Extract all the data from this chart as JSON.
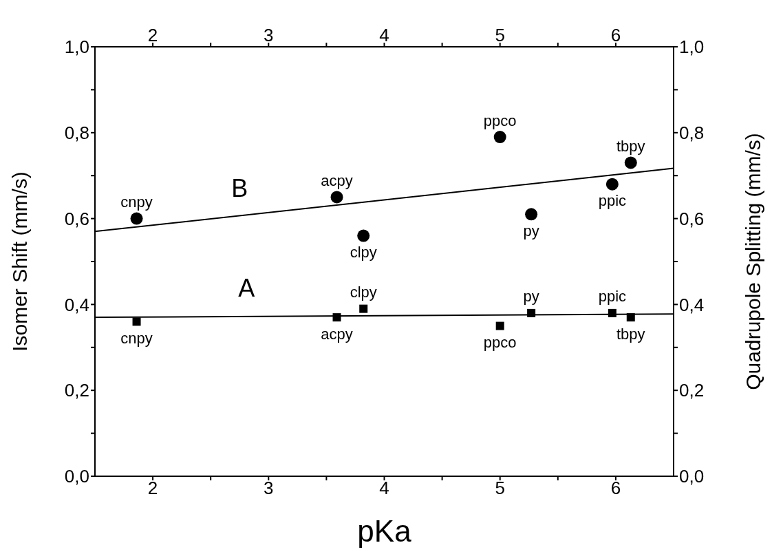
{
  "chart_data": {
    "type": "scatter",
    "xlabel": "pKa",
    "ylabel": "Isomer Shift (mm/s)",
    "y2label": "Quadrupole Splitting (mm/s)",
    "xlim": [
      1.5,
      6.5
    ],
    "xticks": [
      2,
      {
        "value": 2.5,
        "label": null
      },
      3,
      {
        "value": 3.5,
        "label": null
      },
      4,
      {
        "value": 4.5,
        "label": null
      },
      5,
      {
        "value": 5.5,
        "label": null
      },
      6
    ],
    "x2lim": [
      1.5,
      6.5
    ],
    "x2ticks": [
      2,
      {
        "value": 2.5,
        "label": null
      },
      3,
      {
        "value": 3.5,
        "label": null
      },
      4,
      {
        "value": 4.5,
        "label": null
      },
      5,
      {
        "value": 5.5,
        "label": null
      },
      6
    ],
    "ylim": [
      0,
      1
    ],
    "yticks": [
      {
        "value": 0,
        "label": "0,0"
      },
      {
        "value": 0.1,
        "label": null
      },
      {
        "value": 0.2,
        "label": "0,2"
      },
      {
        "value": 0.3,
        "label": null
      },
      {
        "value": 0.4,
        "label": "0,4"
      },
      {
        "value": 0.5,
        "label": null
      },
      {
        "value": 0.6,
        "label": "0,6"
      },
      {
        "value": 0.7,
        "label": null
      },
      {
        "value": 0.8,
        "label": "0,8"
      },
      {
        "value": 0.9,
        "label": null
      },
      {
        "value": 1,
        "label": "1,0"
      }
    ],
    "y2lim": [
      0,
      1
    ],
    "y2ticks": [
      {
        "value": 0,
        "label": "0,0"
      },
      {
        "value": 0.1,
        "label": null
      },
      {
        "value": 0.2,
        "label": "0,2"
      },
      {
        "value": 0.3,
        "label": null
      },
      {
        "value": 0.4,
        "label": "0,4"
      },
      {
        "value": 0.5,
        "label": null
      },
      {
        "value": 0.6,
        "label": "0,6"
      },
      {
        "value": 0.7,
        "label": null
      },
      {
        "value": 0.8,
        "label": "0,8"
      },
      {
        "value": 0.9,
        "label": null
      },
      {
        "value": 1,
        "label": "1,0"
      }
    ],
    "series": [
      {
        "marker": "square",
        "color": "#000000",
        "x": [
          1.86,
          3.59,
          3.82,
          5.0,
          5.27,
          5.97,
          6.13
        ],
        "values": [
          0.36,
          0.37,
          0.39,
          0.35,
          0.38,
          0.38,
          0.37
        ]
      },
      {
        "type": "line",
        "marker": "none",
        "line_style": "solid",
        "color": "#000000",
        "x": [
          1.5,
          6.5
        ],
        "values": [
          0.37,
          0.378
        ]
      },
      {
        "marker": "circle",
        "axis": "y2",
        "color": "#000000",
        "x": [
          1.86,
          3.59,
          3.82,
          5.0,
          5.27,
          5.97,
          6.13
        ],
        "values": [
          0.6,
          0.65,
          0.56,
          0.79,
          0.61,
          0.68,
          0.73
        ]
      },
      {
        "type": "line",
        "marker": "none",
        "line_style": "solid",
        "axis": "y2",
        "color": "#000000",
        "x": [
          1.5,
          6.5
        ],
        "values": [
          0.57,
          0.717
        ]
      }
    ],
    "annotations": [
      {
        "text": "B",
        "x": 2.75,
        "y": 0.6065
      },
      {
        "text": "A",
        "x": 2.81,
        "y": 0.3737
      },
      {
        "text": "cnpy",
        "x": 1.86,
        "y": 0.6
      },
      {
        "text": "acpy",
        "x": 3.59,
        "y": 0.65
      },
      {
        "text": "clpy",
        "x": 3.82,
        "y": 0.56
      },
      {
        "text": "ppco",
        "x": 5.0,
        "y": 0.79
      },
      {
        "text": "py",
        "x": 5.27,
        "y": 0.61
      },
      {
        "text": "ppic",
        "x": 5.97,
        "y": 0.68
      },
      {
        "text": "tbpy",
        "x": 6.13,
        "y": 0.73
      },
      {
        "text": "cnpy",
        "x": 1.86,
        "y": 0.36
      },
      {
        "text": "acpy",
        "x": 3.59,
        "y": 0.37
      },
      {
        "text": "clpy",
        "x": 3.82,
        "y": 0.39
      },
      {
        "text": "ppco",
        "x": 5.0,
        "y": 0.35
      },
      {
        "text": "py",
        "x": 5.27,
        "y": 0.38
      },
      {
        "text": "ppic",
        "x": 5.97,
        "y": 0.38
      },
      {
        "text": "tbpy",
        "x": 6.13,
        "y": 0.37
      }
    ]
  }
}
